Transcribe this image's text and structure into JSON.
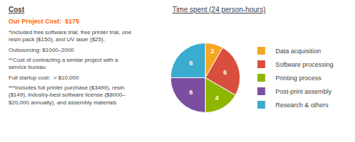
{
  "chart_data": {
    "type": "pie",
    "title": "Time spent (24 person-hours)",
    "categories": [
      "Data acquisition",
      "Software processing",
      "Printing process",
      "Post-print assembly",
      "Research & others"
    ],
    "values": [
      2,
      6,
      4,
      6,
      6
    ],
    "colors": [
      "#F5A623",
      "#D94F3D",
      "#8DB600",
      "#7B4EA0",
      "#3AACCF"
    ],
    "data_labels": true,
    "legend": "right",
    "annotations": [
      {
        "text": "Cost"
      },
      {
        "text": "Our Project Cost:  $175",
        "color": "#FF6600"
      },
      {
        "text": "*Included free software trial, free printer trial, one\nresin pack ($150), and UV laser ($25)."
      },
      {
        "text": "Outsourcing: $1000–2000"
      },
      {
        "text": "**Cost of contracting a similar project with a\nservice bureau"
      },
      {
        "text": "Full startup cost:  > $10,000"
      },
      {
        "text": "***Includes full printer purchase ($3499), resin\n($149), industry-best software license ($8000–\n$20,000 annually), and assembly materials"
      }
    ]
  }
}
